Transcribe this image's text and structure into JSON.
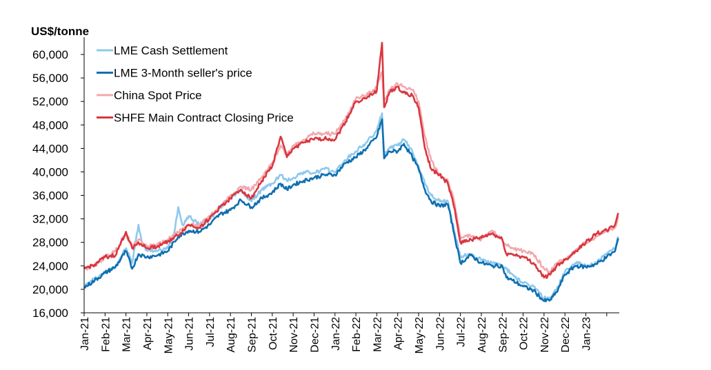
{
  "chart_data": {
    "type": "line",
    "title": "",
    "ylabel": "US$/tonne",
    "xlabel": "",
    "ylim": [
      16000,
      62000
    ],
    "yticks": [
      16000,
      20000,
      24000,
      28000,
      32000,
      36000,
      40000,
      44000,
      48000,
      52000,
      56000,
      60000
    ],
    "ytick_labels": [
      "16,000",
      "20,000",
      "24,000",
      "28,000",
      "32,000",
      "36,000",
      "40,000",
      "44,000",
      "48,000",
      "52,000",
      "56,000",
      "60,000"
    ],
    "categories": [
      "Jan-21",
      "Feb-21",
      "Mar-21",
      "Apr-21",
      "May-21",
      "Jun-21",
      "Jul-21",
      "Aug-21",
      "Sep-21",
      "Oct-21",
      "Nov-21",
      "Dec-21",
      "Jan-22",
      "Feb-22",
      "Mar-22",
      "Apr-22",
      "May-22",
      "Jun-22",
      "Jul-22",
      "Aug-22",
      "Sep-22",
      "Oct-22",
      "Nov-22",
      "Dec-22",
      "Jan-23"
    ],
    "x_extent_months": [
      0,
      25.6
    ],
    "grid": false,
    "legend_position": "top-left",
    "series": [
      {
        "name": "LME Cash Settlement",
        "color": "#8ec8ee",
        "points": [
          [
            0.0,
            20500
          ],
          [
            0.5,
            21800
          ],
          [
            1.0,
            22900
          ],
          [
            1.5,
            24000
          ],
          [
            2.0,
            27000
          ],
          [
            2.3,
            24500
          ],
          [
            2.6,
            31000
          ],
          [
            2.8,
            27500
          ],
          [
            3.0,
            26800
          ],
          [
            3.5,
            26500
          ],
          [
            4.0,
            27000
          ],
          [
            4.3,
            29500
          ],
          [
            4.5,
            34000
          ],
          [
            4.7,
            31000
          ],
          [
            5.0,
            32500
          ],
          [
            5.5,
            31000
          ],
          [
            6.0,
            32000
          ],
          [
            6.5,
            33800
          ],
          [
            7.0,
            35800
          ],
          [
            7.5,
            36800
          ],
          [
            8.0,
            35000
          ],
          [
            8.5,
            37000
          ],
          [
            9.0,
            38000
          ],
          [
            9.4,
            39500
          ],
          [
            9.7,
            38500
          ],
          [
            10.0,
            39000
          ],
          [
            10.5,
            40000
          ],
          [
            11.0,
            39800
          ],
          [
            11.5,
            40500
          ],
          [
            12.0,
            40000
          ],
          [
            12.5,
            42000
          ],
          [
            13.0,
            43500
          ],
          [
            13.5,
            45000
          ],
          [
            14.0,
            47000
          ],
          [
            14.25,
            50000
          ],
          [
            14.35,
            43000
          ],
          [
            14.6,
            44000
          ],
          [
            15.0,
            44500
          ],
          [
            15.3,
            45500
          ],
          [
            15.7,
            43500
          ],
          [
            16.0,
            41000
          ],
          [
            16.3,
            38000
          ],
          [
            16.6,
            36000
          ],
          [
            17.0,
            35000
          ],
          [
            17.4,
            35000
          ],
          [
            17.7,
            30000
          ],
          [
            18.0,
            25500
          ],
          [
            18.5,
            26000
          ],
          [
            19.0,
            25000
          ],
          [
            19.5,
            24500
          ],
          [
            20.0,
            24000
          ],
          [
            20.5,
            22500
          ],
          [
            21.0,
            21000
          ],
          [
            21.5,
            20500
          ],
          [
            22.0,
            18500
          ],
          [
            22.3,
            18500
          ],
          [
            22.6,
            20000
          ],
          [
            23.0,
            23000
          ],
          [
            23.5,
            24500
          ],
          [
            24.0,
            24000
          ],
          [
            24.5,
            24500
          ],
          [
            25.0,
            26000
          ],
          [
            25.4,
            27000
          ],
          [
            25.55,
            29000
          ]
        ]
      },
      {
        "name": "LME  3-Month seller's price",
        "color": "#0f6fb0",
        "points": [
          [
            0.0,
            20300
          ],
          [
            0.5,
            21500
          ],
          [
            1.0,
            22800
          ],
          [
            1.5,
            23800
          ],
          [
            2.0,
            26500
          ],
          [
            2.3,
            23500
          ],
          [
            2.6,
            26000
          ],
          [
            3.0,
            25500
          ],
          [
            3.5,
            25800
          ],
          [
            4.0,
            26500
          ],
          [
            4.5,
            29000
          ],
          [
            5.0,
            30000
          ],
          [
            5.5,
            29800
          ],
          [
            6.0,
            31000
          ],
          [
            6.5,
            32800
          ],
          [
            7.0,
            33500
          ],
          [
            7.5,
            35200
          ],
          [
            8.0,
            34000
          ],
          [
            8.5,
            35500
          ],
          [
            9.0,
            36500
          ],
          [
            9.4,
            38000
          ],
          [
            9.7,
            37000
          ],
          [
            10.0,
            37800
          ],
          [
            10.5,
            38500
          ],
          [
            11.0,
            39000
          ],
          [
            11.5,
            39500
          ],
          [
            12.0,
            39500
          ],
          [
            12.5,
            41500
          ],
          [
            13.0,
            42500
          ],
          [
            13.5,
            44000
          ],
          [
            14.0,
            46000
          ],
          [
            14.25,
            49000
          ],
          [
            14.35,
            42300
          ],
          [
            14.6,
            43500
          ],
          [
            15.0,
            43500
          ],
          [
            15.3,
            44800
          ],
          [
            15.7,
            42500
          ],
          [
            16.0,
            40500
          ],
          [
            16.3,
            37000
          ],
          [
            16.6,
            35000
          ],
          [
            17.0,
            34200
          ],
          [
            17.4,
            34500
          ],
          [
            17.7,
            29500
          ],
          [
            18.0,
            24500
          ],
          [
            18.5,
            25800
          ],
          [
            19.0,
            24500
          ],
          [
            19.5,
            24000
          ],
          [
            20.0,
            24000
          ],
          [
            20.2,
            22000
          ],
          [
            20.5,
            21500
          ],
          [
            21.0,
            20500
          ],
          [
            21.5,
            19800
          ],
          [
            22.0,
            18000
          ],
          [
            22.3,
            18200
          ],
          [
            22.6,
            19500
          ],
          [
            23.0,
            22500
          ],
          [
            23.5,
            24000
          ],
          [
            24.0,
            23800
          ],
          [
            24.5,
            24300
          ],
          [
            25.0,
            25500
          ],
          [
            25.4,
            26500
          ],
          [
            25.55,
            28700
          ]
        ]
      },
      {
        "name": "China Spot Price",
        "color": "#f2a8ae",
        "points": [
          [
            0.0,
            23500
          ],
          [
            0.5,
            24000
          ],
          [
            1.0,
            25500
          ],
          [
            1.5,
            26500
          ],
          [
            2.0,
            29500
          ],
          [
            2.3,
            27200
          ],
          [
            2.6,
            28500
          ],
          [
            3.0,
            27300
          ],
          [
            3.5,
            27500
          ],
          [
            4.0,
            28500
          ],
          [
            4.5,
            29700
          ],
          [
            5.0,
            31000
          ],
          [
            5.5,
            30800
          ],
          [
            6.0,
            32500
          ],
          [
            6.5,
            34000
          ],
          [
            7.0,
            36000
          ],
          [
            7.5,
            37500
          ],
          [
            8.0,
            37000
          ],
          [
            8.5,
            39000
          ],
          [
            9.0,
            41500
          ],
          [
            9.4,
            44500
          ],
          [
            9.7,
            43000
          ],
          [
            10.0,
            44500
          ],
          [
            10.5,
            45500
          ],
          [
            11.0,
            46500
          ],
          [
            11.5,
            46500
          ],
          [
            12.0,
            46500
          ],
          [
            12.5,
            49000
          ],
          [
            13.0,
            52500
          ],
          [
            13.5,
            53000
          ],
          [
            14.0,
            54500
          ],
          [
            14.25,
            57000
          ],
          [
            14.35,
            52000
          ],
          [
            14.6,
            54000
          ],
          [
            15.0,
            55000
          ],
          [
            15.3,
            54500
          ],
          [
            15.7,
            54000
          ],
          [
            16.0,
            52000
          ],
          [
            16.3,
            46000
          ],
          [
            16.6,
            42000
          ],
          [
            17.0,
            39500
          ],
          [
            17.4,
            38500
          ],
          [
            17.7,
            35000
          ],
          [
            18.0,
            29000
          ],
          [
            18.5,
            29000
          ],
          [
            19.0,
            28500
          ],
          [
            19.5,
            30000
          ],
          [
            20.0,
            28500
          ],
          [
            20.2,
            27500
          ],
          [
            20.5,
            27000
          ],
          [
            21.0,
            26500
          ],
          [
            21.5,
            26000
          ],
          [
            22.0,
            23500
          ],
          [
            22.3,
            23000
          ],
          [
            22.6,
            24500
          ],
          [
            23.0,
            25000
          ],
          [
            23.5,
            26500
          ],
          [
            24.0,
            28000
          ],
          [
            24.5,
            29000
          ],
          [
            25.0,
            30000
          ],
          [
            25.4,
            30500
          ],
          [
            25.55,
            32500
          ]
        ]
      },
      {
        "name": "SHFE Main Contract Closing Price",
        "color": "#d9373f",
        "points": [
          [
            0.0,
            23500
          ],
          [
            0.5,
            24200
          ],
          [
            1.0,
            25500
          ],
          [
            1.5,
            25800
          ],
          [
            2.0,
            29800
          ],
          [
            2.3,
            27000
          ],
          [
            2.6,
            28000
          ],
          [
            3.0,
            27000
          ],
          [
            3.5,
            27300
          ],
          [
            4.0,
            28200
          ],
          [
            4.5,
            29200
          ],
          [
            5.0,
            31000
          ],
          [
            5.5,
            30500
          ],
          [
            6.0,
            32000
          ],
          [
            6.5,
            34000
          ],
          [
            7.0,
            35500
          ],
          [
            7.5,
            37000
          ],
          [
            8.0,
            35500
          ],
          [
            8.5,
            38500
          ],
          [
            9.0,
            41000
          ],
          [
            9.4,
            46000
          ],
          [
            9.7,
            42500
          ],
          [
            10.0,
            44000
          ],
          [
            10.5,
            45000
          ],
          [
            11.0,
            45500
          ],
          [
            11.5,
            45700
          ],
          [
            12.0,
            45500
          ],
          [
            12.5,
            48500
          ],
          [
            13.0,
            52000
          ],
          [
            13.5,
            52500
          ],
          [
            14.0,
            53800
          ],
          [
            14.25,
            62000
          ],
          [
            14.35,
            51000
          ],
          [
            14.6,
            53500
          ],
          [
            15.0,
            54500
          ],
          [
            15.3,
            53500
          ],
          [
            15.7,
            53000
          ],
          [
            16.0,
            51000
          ],
          [
            16.3,
            44000
          ],
          [
            16.6,
            40500
          ],
          [
            17.0,
            39500
          ],
          [
            17.4,
            38000
          ],
          [
            17.7,
            34000
          ],
          [
            18.0,
            28000
          ],
          [
            18.5,
            28500
          ],
          [
            19.0,
            28800
          ],
          [
            19.5,
            29500
          ],
          [
            20.0,
            28500
          ],
          [
            20.2,
            26000
          ],
          [
            20.5,
            26000
          ],
          [
            21.0,
            25500
          ],
          [
            21.5,
            24500
          ],
          [
            22.0,
            22000
          ],
          [
            22.3,
            22500
          ],
          [
            22.6,
            24000
          ],
          [
            23.0,
            25000
          ],
          [
            23.5,
            26500
          ],
          [
            24.0,
            28000
          ],
          [
            24.5,
            29500
          ],
          [
            25.0,
            30000
          ],
          [
            25.4,
            31000
          ],
          [
            25.55,
            33000
          ]
        ]
      }
    ]
  }
}
